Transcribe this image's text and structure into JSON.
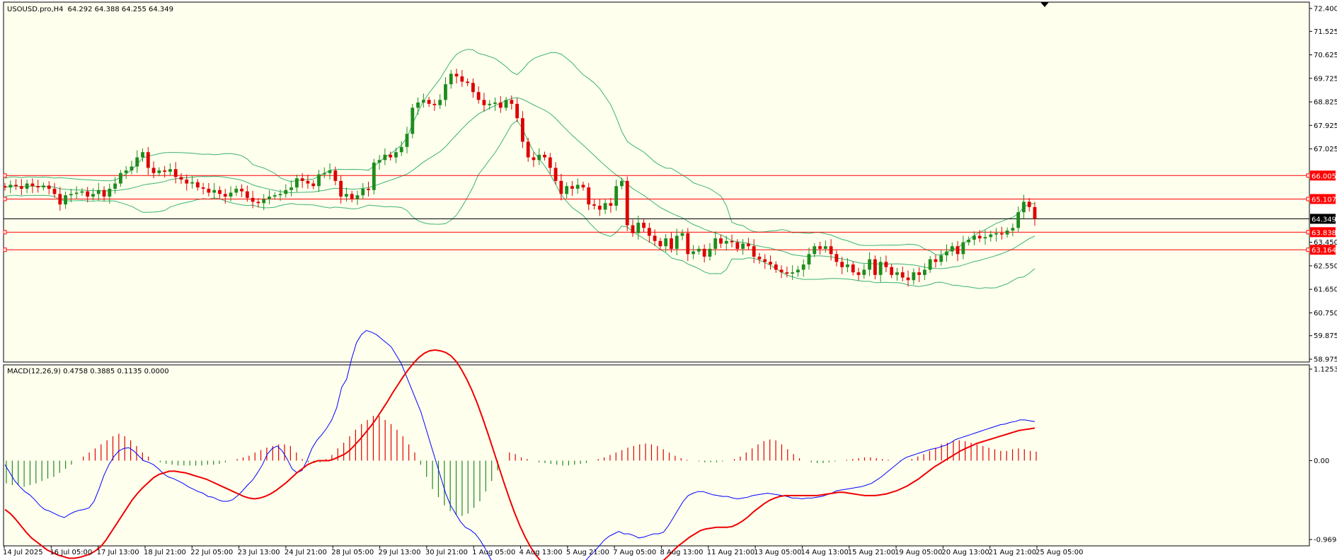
{
  "chart_data": [
    {
      "type": "candlestick",
      "title": "USOUSD.pro,H4",
      "ohlc_header": "64.292 64.388 64.255 64.349",
      "current_price": "64.349",
      "ylim": [
        58.975,
        72.4
      ],
      "y_ticks": [
        "72.400",
        "71.525",
        "70.625",
        "69.725",
        "68.825",
        "67.925",
        "67.025",
        "66.005",
        "65.107",
        "64.349",
        "63.838",
        "63.450",
        "63.164",
        "62.550",
        "61.650",
        "60.750",
        "59.875",
        "58.975"
      ],
      "levels": [
        {
          "value": 66.005,
          "label": "66.005",
          "color": "#ff0000"
        },
        {
          "value": 65.107,
          "label": "65.107",
          "color": "#ff0000"
        },
        {
          "value": 64.349,
          "label": "64.349",
          "color": "#000000"
        },
        {
          "value": 63.838,
          "label": "63.838",
          "color": "#ff0000"
        },
        {
          "value": 63.164,
          "label": "63.164",
          "color": "#ff0000"
        }
      ],
      "x_labels": [
        "14 Jul 2025",
        "16 Jul 05:00",
        "17 Jul 13:00",
        "18 Jul 21:00",
        "22 Jul 05:00",
        "23 Jul 13:00",
        "24 Jul 21:00",
        "28 Jul 05:00",
        "29 Jul 13:00",
        "30 Jul 21:00",
        "1 Aug 05:00",
        "4 Aug 13:00",
        "5 Aug 21:00",
        "7 Aug 05:00",
        "8 Aug 13:00",
        "11 Aug 21:00",
        "13 Aug 05:00",
        "14 Aug 13:00",
        "15 Aug 21:00",
        "19 Aug 05:00",
        "20 Aug 13:00",
        "21 Aug 21:00",
        "25 Aug 05:00"
      ],
      "closes": [
        65.55,
        65.65,
        65.6,
        65.5,
        65.7,
        65.6,
        65.55,
        65.62,
        65.5,
        65.3,
        64.9,
        65.25,
        65.3,
        65.35,
        65.4,
        65.2,
        65.3,
        65.45,
        65.2,
        65.5,
        65.7,
        66.1,
        66.2,
        66.35,
        66.7,
        66.9,
        66.3,
        66.1,
        66.2,
        66.15,
        66.25,
        65.95,
        65.85,
        65.7,
        65.75,
        65.55,
        65.5,
        65.35,
        65.45,
        65.3,
        65.2,
        65.35,
        65.5,
        65.4,
        65.15,
        65.0,
        64.95,
        65.1,
        65.2,
        65.25,
        65.3,
        65.45,
        65.55,
        65.9,
        65.8,
        65.7,
        65.6,
        66.05,
        66.1,
        66.2,
        65.8,
        65.2,
        65.3,
        65.1,
        65.25,
        65.5,
        65.45,
        66.5,
        66.6,
        66.8,
        66.7,
        66.9,
        67.1,
        67.6,
        68.6,
        68.8,
        68.9,
        68.75,
        68.7,
        68.9,
        69.5,
        69.9,
        69.8,
        69.6,
        69.55,
        69.2,
        68.9,
        68.7,
        68.75,
        68.8,
        68.6,
        68.9,
        68.75,
        68.2,
        67.3,
        66.7,
        66.6,
        66.8,
        66.7,
        66.3,
        65.8,
        65.3,
        65.6,
        65.5,
        65.65,
        65.55,
        64.9,
        64.85,
        64.7,
        64.95,
        64.85,
        65.6,
        65.8,
        64.1,
        63.8,
        64.2,
        64.0,
        63.7,
        63.5,
        63.3,
        63.6,
        63.2,
        63.7,
        63.8,
        63.0,
        63.1,
        63.2,
        62.9,
        63.2,
        63.6,
        63.4,
        63.5,
        63.45,
        63.2,
        63.4,
        63.3,
        62.9,
        62.8,
        62.7,
        62.6,
        62.4,
        62.3,
        62.25,
        62.3,
        62.4,
        62.6,
        63.0,
        63.3,
        63.2,
        63.3,
        63.0,
        62.7,
        62.5,
        62.6,
        62.3,
        62.2,
        62.4,
        62.8,
        62.2,
        62.7,
        62.5,
        62.2,
        62.3,
        62.1,
        62.0,
        62.3,
        62.2,
        62.4,
        62.8,
        62.7,
        62.95,
        63.1,
        63.3,
        63.0,
        63.45,
        63.55,
        63.7,
        63.6,
        63.65,
        63.75,
        63.8,
        63.75,
        63.9,
        64.0,
        64.6,
        65.0,
        64.8,
        64.35
      ],
      "macd_label": "MACD(12,26,9) 0.4758 0.3885 0.1135 0.0000",
      "macd_ylim": [
        -0.9694,
        1.1253
      ],
      "macd_ticks": [
        "1.1253",
        "0.00",
        "-0.9694"
      ],
      "macd": [
        -0.05,
        -0.15,
        -0.25,
        -0.32,
        -0.38,
        -0.42,
        -0.48,
        -0.55,
        -0.6,
        -0.62,
        -0.65,
        -0.68,
        -0.7,
        -0.66,
        -0.63,
        -0.61,
        -0.6,
        -0.58,
        -0.5,
        -0.35,
        -0.18,
        -0.05,
        0.05,
        0.12,
        0.15,
        0.16,
        0.12,
        0.06,
        0.0,
        -0.02,
        -0.05,
        -0.1,
        -0.16,
        -0.2,
        -0.22,
        -0.25,
        -0.28,
        -0.32,
        -0.35,
        -0.38,
        -0.4,
        -0.44,
        -0.45,
        -0.48,
        -0.5,
        -0.5,
        -0.48,
        -0.43,
        -0.37,
        -0.3,
        -0.24,
        -0.15,
        -0.05,
        0.08,
        0.15,
        0.18,
        0.12,
        0.02,
        -0.1,
        -0.15,
        -0.12,
        0.0,
        0.15,
        0.25,
        0.32,
        0.4,
        0.5,
        0.65,
        0.9,
        1.0,
        1.25,
        1.45,
        1.55,
        1.6,
        1.58,
        1.55,
        1.5,
        1.45,
        1.4,
        1.3,
        1.2,
        1.05,
        0.9,
        0.75,
        0.6,
        0.4,
        0.2,
        0.0,
        -0.2,
        -0.4,
        -0.55,
        -0.65,
        -0.75,
        -0.82,
        -0.85,
        -0.9,
        -0.98,
        -1.08,
        -1.2,
        -1.3,
        -1.35,
        -1.36,
        -1.35,
        -1.34,
        -1.38,
        -1.42,
        -1.46,
        -1.5,
        -1.55,
        -1.55,
        -1.54,
        -1.52,
        -1.45,
        -1.4,
        -1.35,
        -1.33,
        -1.3,
        -1.25,
        -1.18,
        -1.12,
        -1.05,
        -0.98,
        -0.93,
        -0.9,
        -0.87,
        -0.9,
        -0.9,
        -0.92,
        -0.95,
        -0.94,
        -0.92,
        -0.9,
        -0.9,
        -0.88,
        -0.8,
        -0.7,
        -0.6,
        -0.5,
        -0.43,
        -0.4,
        -0.38,
        -0.38,
        -0.4,
        -0.42,
        -0.43,
        -0.44,
        -0.44,
        -0.46,
        -0.47,
        -0.46,
        -0.45,
        -0.43,
        -0.42,
        -0.41,
        -0.4,
        -0.41,
        -0.42,
        -0.43,
        -0.44,
        -0.46,
        -0.46,
        -0.47,
        -0.46,
        -0.46,
        -0.45,
        -0.44,
        -0.42,
        -0.4,
        -0.37,
        -0.36,
        -0.35,
        -0.34,
        -0.33,
        -0.32,
        -0.3,
        -0.28,
        -0.24,
        -0.2,
        -0.15,
        -0.1,
        -0.05,
        0.0,
        0.04,
        0.06,
        0.08,
        0.1,
        0.12,
        0.14,
        0.15,
        0.17,
        0.19,
        0.22,
        0.26,
        0.28,
        0.3,
        0.32,
        0.34,
        0.36,
        0.38,
        0.4,
        0.42,
        0.44,
        0.45,
        0.47,
        0.48,
        0.5,
        0.5,
        0.49,
        0.48
      ],
      "signal_line": [
        -0.6,
        -0.65,
        -0.72,
        -0.8,
        -0.88,
        -0.95,
        -1.0,
        -1.05,
        -1.1,
        -1.13,
        -1.16,
        -1.18,
        -1.2,
        -1.2,
        -1.19,
        -1.17,
        -1.15,
        -1.11,
        -1.06,
        -0.98,
        -0.88,
        -0.78,
        -0.68,
        -0.58,
        -0.48,
        -0.4,
        -0.33,
        -0.27,
        -0.21,
        -0.17,
        -0.15,
        -0.13,
        -0.13,
        -0.14,
        -0.15,
        -0.17,
        -0.19,
        -0.21,
        -0.23,
        -0.26,
        -0.29,
        -0.32,
        -0.35,
        -0.38,
        -0.41,
        -0.44,
        -0.46,
        -0.47,
        -0.46,
        -0.44,
        -0.41,
        -0.37,
        -0.32,
        -0.27,
        -0.21,
        -0.15,
        -0.1,
        -0.05,
        -0.02,
        0.0,
        0.0,
        0.0,
        0.02,
        0.05,
        0.08,
        0.13,
        0.2,
        0.27,
        0.35,
        0.43,
        0.52,
        0.62,
        0.72,
        0.83,
        0.93,
        1.03,
        1.12,
        1.2,
        1.27,
        1.32,
        1.35,
        1.36,
        1.35,
        1.33,
        1.29,
        1.22,
        1.12,
        1.0,
        0.86,
        0.7,
        0.52,
        0.33,
        0.13,
        -0.07,
        -0.27,
        -0.46,
        -0.64,
        -0.8,
        -0.94,
        -1.06,
        -1.16,
        -1.24,
        -1.3,
        -1.34,
        -1.37,
        -1.39,
        -1.41,
        -1.42,
        -1.43,
        -1.44,
        -1.44,
        -1.45,
        -1.46,
        -1.47,
        -1.48,
        -1.49,
        -1.5,
        -1.5,
        -1.49,
        -1.47,
        -1.44,
        -1.4,
        -1.35,
        -1.29,
        -1.23,
        -1.17,
        -1.1,
        -1.04,
        -0.99,
        -0.94,
        -0.9,
        -0.86,
        -0.84,
        -0.83,
        -0.82,
        -0.82,
        -0.82,
        -0.81,
        -0.78,
        -0.74,
        -0.69,
        -0.63,
        -0.58,
        -0.53,
        -0.49,
        -0.46,
        -0.44,
        -0.43,
        -0.43,
        -0.43,
        -0.43,
        -0.43,
        -0.43,
        -0.43,
        -0.42,
        -0.41,
        -0.4,
        -0.39,
        -0.39,
        -0.4,
        -0.41,
        -0.42,
        -0.43,
        -0.43,
        -0.43,
        -0.42,
        -0.41,
        -0.39,
        -0.37,
        -0.34,
        -0.31,
        -0.27,
        -0.23,
        -0.18,
        -0.13,
        -0.08,
        -0.04,
        0.0,
        0.04,
        0.08,
        0.12,
        0.15,
        0.18,
        0.21,
        0.23,
        0.25,
        0.27,
        0.29,
        0.31,
        0.33,
        0.35,
        0.37,
        0.38,
        0.39,
        0.4
      ],
      "histogram": [
        -0.28,
        -0.3,
        -0.3,
        -0.32,
        -0.3,
        -0.28,
        -0.25,
        -0.22,
        -0.2,
        -0.15,
        -0.1,
        -0.05,
        0.0,
        0.05,
        0.1,
        0.15,
        0.2,
        0.25,
        0.3,
        0.33,
        0.3,
        0.25,
        0.18,
        0.1,
        0.05,
        0.0,
        -0.02,
        -0.04,
        -0.05,
        -0.06,
        -0.06,
        -0.06,
        -0.06,
        -0.06,
        -0.05,
        -0.05,
        -0.04,
        -0.02,
        0.0,
        0.02,
        0.04,
        0.06,
        0.1,
        0.13,
        0.16,
        0.18,
        0.2,
        0.2,
        0.18,
        0.1,
        0.02,
        -0.02,
        -0.03,
        -0.02,
        0.02,
        0.07,
        0.15,
        0.22,
        0.3,
        0.38,
        0.45,
        0.5,
        0.55,
        0.55,
        0.5,
        0.45,
        0.38,
        0.3,
        0.2,
        0.1,
        -0.05,
        -0.2,
        -0.35,
        -0.45,
        -0.55,
        -0.62,
        -0.67,
        -0.68,
        -0.65,
        -0.58,
        -0.5,
        -0.38,
        -0.25,
        -0.12,
        0.0,
        0.1,
        0.08,
        0.04,
        0.02,
        0.0,
        -0.02,
        -0.03,
        -0.04,
        -0.05,
        -0.06,
        -0.06,
        -0.05,
        -0.04,
        -0.03,
        0.0,
        0.02,
        0.04,
        0.07,
        0.1,
        0.13,
        0.16,
        0.18,
        0.2,
        0.21,
        0.2,
        0.18,
        0.14,
        0.1,
        0.06,
        0.03,
        0.01,
        0.0,
        -0.01,
        -0.02,
        -0.02,
        -0.02,
        -0.01,
        0.0,
        0.02,
        0.05,
        0.1,
        0.15,
        0.2,
        0.24,
        0.26,
        0.25,
        0.2,
        0.14,
        0.08,
        0.03,
        0.0,
        -0.02,
        -0.03,
        -0.03,
        -0.02,
        -0.01,
        0.0,
        0.01,
        0.02,
        0.03,
        0.04,
        0.04,
        0.03,
        0.02,
        0.01,
        0.0,
        -0.01,
        0.0,
        0.02,
        0.05,
        0.08,
        0.12,
        0.16,
        0.2,
        0.22,
        0.24,
        0.25,
        0.24,
        0.22,
        0.2,
        0.18,
        0.16,
        0.14,
        0.12,
        0.12,
        0.14,
        0.15,
        0.14,
        0.12,
        0.11
      ]
    }
  ]
}
